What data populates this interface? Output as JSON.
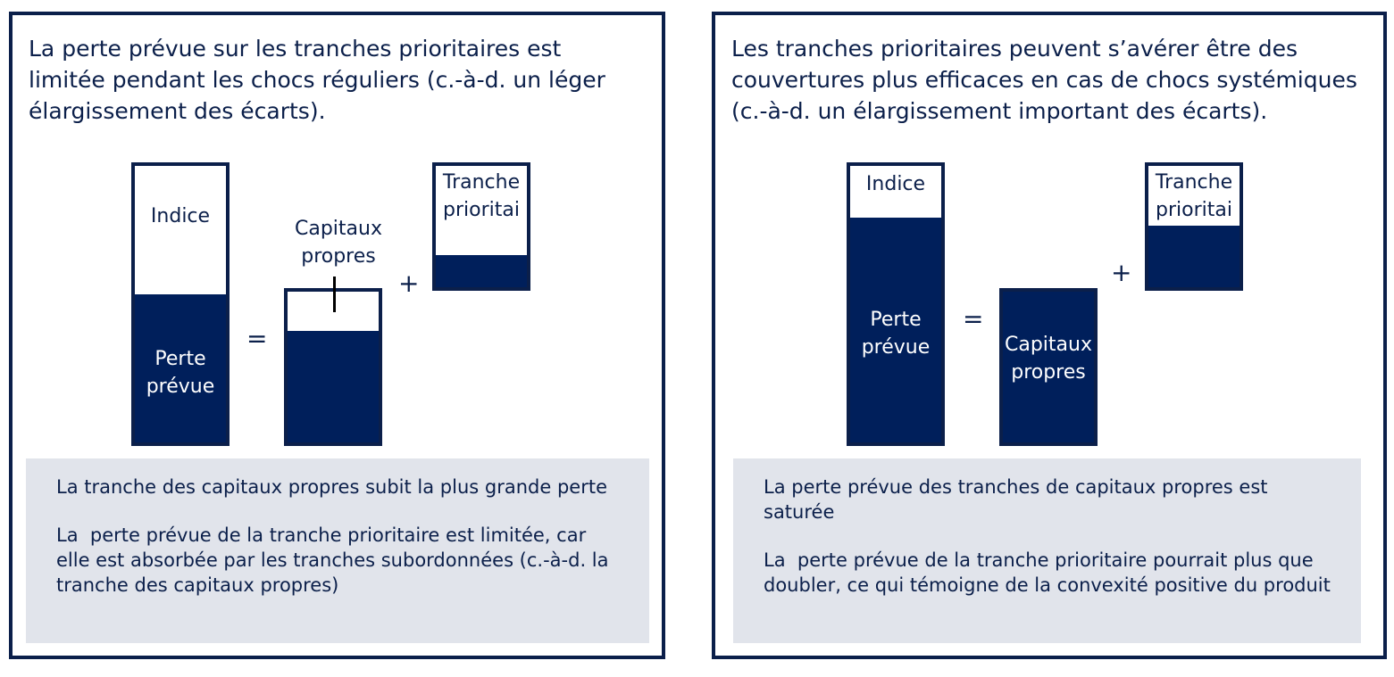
{
  "left": {
    "heading": "La perte prévue sur les tranches prioritaires est limitée pendant les chocs réguliers (c.-à-d. un léger élargissement des écarts).",
    "index_label": "Indice",
    "expected_loss_label": "Perte\nprévue",
    "equity_label": "Capitaux\npropres",
    "senior_label": "Tranche\nprioritai",
    "equals": "=",
    "plus": "+",
    "notes": [
      "La tranche des capitaux propres subit la plus grande perte",
      "La  perte prévue de la tranche prioritaire est limitée, car elle est absorbée par les tranches subordonnées (c.-à-d. la tranche des capitaux propres)"
    ]
  },
  "right": {
    "heading": "Les tranches prioritaires peuvent s’avérer être des couvertures plus efficaces en cas de chocs systémiques (c.-à-d. un élargissement important des écarts).",
    "index_label": "Indice",
    "expected_loss_label": "Perte\nprévue",
    "equity_label": "Capitaux\npropres",
    "senior_label": "Tranche\nprioritai",
    "equals": "=",
    "plus": "+",
    "notes": [
      "La perte prévue des tranches de capitaux propres est saturée",
      "La  perte prévue de la tranche prioritaire pourrait plus que doubler, ce qui témoigne de la convexité positive du produit"
    ]
  },
  "colors": {
    "navy": "#001f5b",
    "border": "#0b1f4a",
    "notes_bg": "#e1e4eb"
  }
}
